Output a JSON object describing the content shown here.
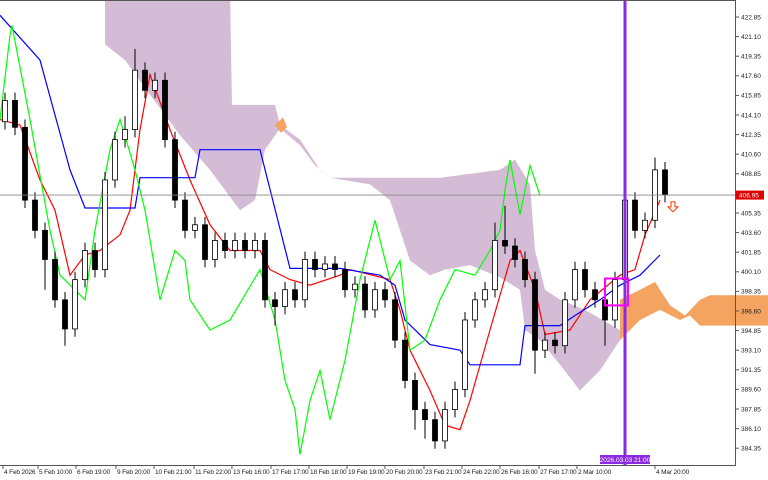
{
  "chart_data": {
    "type": "candlestick",
    "y_axis": {
      "range": [
        383.4,
        424.4
      ],
      "ticks": [
        "422.85",
        "421.10",
        "419.35",
        "417.60",
        "415.85",
        "414.10",
        "412.35",
        "410.60",
        "408.85",
        "405.35",
        "403.60",
        "401.85",
        "400.10",
        "398.35",
        "396.60",
        "394.85",
        "393.10",
        "391.35",
        "389.60",
        "387.85",
        "386.10",
        "384.35"
      ],
      "position": "right"
    },
    "current_price": {
      "label": "406.95",
      "value": 406.95,
      "color": "#e00000"
    },
    "x_axis": {
      "labels": [
        "4 Feb 2026",
        "5 Feb 10:00",
        "6 Feb 19:00",
        "9 Feb 20:00",
        "10 Feb 21:00",
        "11 Feb 22:00",
        "13 Feb 16:00",
        "17 Feb 17:00",
        "18 Feb 18:00",
        "19 Feb 19:00",
        "20 Feb 20:00",
        "23 Feb 21:00",
        "24 Feb 22:00",
        "26 Feb 16:00",
        "27 Feb 17:00",
        "2 Mar 10:00",
        "4 Mar 20:00"
      ],
      "crosshair_label": "2026.03.03 21:00"
    },
    "candles_ohlc": [
      [
        413.5,
        416.1,
        412.8,
        415.4
      ],
      [
        415.4,
        416.1,
        412.3,
        413.0
      ],
      [
        413.0,
        413.7,
        405.8,
        406.5
      ],
      [
        406.5,
        407.2,
        403.1,
        403.8
      ],
      [
        403.8,
        404.5,
        398.5,
        401.2
      ],
      [
        401.2,
        401.9,
        396.9,
        397.6
      ],
      [
        397.6,
        398.3,
        393.5,
        395.0
      ],
      [
        395.0,
        400.1,
        394.3,
        399.4
      ],
      [
        399.4,
        402.7,
        398.7,
        402.0
      ],
      [
        402.0,
        402.7,
        399.6,
        400.3
      ],
      [
        400.3,
        409.0,
        399.6,
        408.3
      ],
      [
        408.3,
        412.6,
        407.6,
        411.9
      ],
      [
        411.9,
        414.0,
        411.2,
        412.8
      ],
      [
        412.8,
        420.0,
        412.1,
        418.1
      ],
      [
        418.1,
        418.8,
        415.6,
        416.3
      ],
      [
        416.3,
        417.9,
        415.6,
        417.2
      ],
      [
        417.2,
        417.9,
        411.2,
        411.9
      ],
      [
        411.9,
        412.6,
        405.8,
        406.5
      ],
      [
        406.5,
        407.2,
        403.1,
        403.8
      ],
      [
        403.8,
        405.0,
        403.1,
        404.3
      ],
      [
        404.3,
        405.0,
        400.5,
        401.2
      ],
      [
        401.2,
        403.6,
        400.5,
        402.9
      ],
      [
        402.9,
        403.6,
        401.3,
        402.0
      ],
      [
        402.0,
        403.6,
        401.3,
        402.9
      ],
      [
        402.9,
        403.6,
        401.3,
        402.0
      ],
      [
        402.0,
        403.6,
        401.3,
        402.9
      ],
      [
        402.9,
        403.6,
        396.9,
        397.6
      ],
      [
        397.6,
        398.3,
        395.3,
        397.0
      ],
      [
        397.0,
        399.2,
        396.3,
        398.5
      ],
      [
        398.5,
        399.2,
        396.9,
        397.6
      ],
      [
        397.6,
        401.9,
        396.9,
        401.2
      ],
      [
        401.2,
        401.9,
        399.6,
        400.3
      ],
      [
        400.3,
        401.5,
        399.6,
        400.8
      ],
      [
        400.8,
        401.5,
        399.6,
        400.3
      ],
      [
        400.3,
        401.0,
        397.8,
        398.5
      ],
      [
        398.5,
        399.7,
        397.8,
        399.0
      ],
      [
        399.0,
        399.7,
        396.0,
        396.7
      ],
      [
        396.7,
        399.2,
        396.0,
        398.5
      ],
      [
        398.5,
        399.2,
        396.9,
        397.6
      ],
      [
        397.6,
        398.3,
        393.3,
        394.0
      ],
      [
        394.0,
        394.7,
        389.7,
        390.4
      ],
      [
        390.4,
        391.1,
        386.0,
        387.8
      ],
      [
        387.8,
        388.5,
        385.2,
        386.9
      ],
      [
        386.9,
        387.6,
        384.3,
        385.0
      ],
      [
        385.0,
        388.5,
        384.3,
        387.8
      ],
      [
        387.8,
        390.3,
        387.1,
        389.6
      ],
      [
        389.6,
        396.5,
        388.9,
        395.8
      ],
      [
        395.8,
        398.3,
        395.1,
        397.6
      ],
      [
        397.6,
        399.2,
        396.9,
        398.5
      ],
      [
        398.5,
        404.5,
        397.8,
        402.9
      ],
      [
        402.9,
        406.0,
        401.7,
        402.4
      ],
      [
        402.4,
        403.1,
        400.5,
        401.2
      ],
      [
        401.2,
        401.9,
        398.7,
        399.4
      ],
      [
        399.4,
        400.1,
        391.0,
        393.1
      ],
      [
        393.1,
        394.7,
        392.4,
        394.0
      ],
      [
        394.0,
        394.7,
        392.8,
        393.5
      ],
      [
        393.5,
        398.3,
        392.8,
        397.6
      ],
      [
        397.6,
        401.0,
        396.9,
        400.3
      ],
      [
        400.3,
        401.0,
        397.8,
        398.5
      ],
      [
        398.5,
        399.2,
        396.9,
        397.6
      ],
      [
        397.6,
        398.3,
        393.5,
        395.8
      ],
      [
        395.8,
        400.1,
        395.1,
        399.4
      ],
      [
        399.4,
        407.2,
        398.7,
        406.5
      ],
      [
        406.5,
        407.2,
        403.1,
        403.8
      ],
      [
        403.8,
        405.4,
        403.1,
        404.7
      ],
      [
        404.7,
        410.3,
        404.0,
        409.2
      ],
      [
        409.2,
        409.9,
        406.3,
        407.0
      ]
    ],
    "lines": {
      "tenkan": {
        "color": "#ff0000",
        "points": [
          [
            -0.5,
            413.7
          ],
          [
            1.5,
            413.2
          ],
          [
            3.5,
            408.3
          ],
          [
            5,
            405.6
          ],
          [
            6.5,
            399.8
          ],
          [
            8,
            401.6
          ],
          [
            9.5,
            402.0
          ],
          [
            11.5,
            403.4
          ],
          [
            12.5,
            405.6
          ],
          [
            13.5,
            412.8
          ],
          [
            14.5,
            417.7
          ],
          [
            16.5,
            412.8
          ],
          [
            18.5,
            408.3
          ],
          [
            20.5,
            404.3
          ],
          [
            22.5,
            402.0
          ],
          [
            25.5,
            402.0
          ],
          [
            26.5,
            400.3
          ],
          [
            28.5,
            399.4
          ],
          [
            30.5,
            398.9
          ],
          [
            33.5,
            399.8
          ],
          [
            34.5,
            400.3
          ],
          [
            38.5,
            399.4
          ],
          [
            39.5,
            396.7
          ],
          [
            40.5,
            393.1
          ],
          [
            42.5,
            389.5
          ],
          [
            44,
            386.4
          ],
          [
            45.5,
            386.0
          ],
          [
            46.5,
            388.6
          ],
          [
            48.5,
            394.9
          ],
          [
            50.5,
            401.1
          ],
          [
            51.5,
            402.0
          ],
          [
            53,
            398.5
          ],
          [
            54,
            394.5
          ],
          [
            56.5,
            394.9
          ],
          [
            58.5,
            397.6
          ],
          [
            61.5,
            399.8
          ],
          [
            63,
            400.3
          ],
          [
            64,
            403.4
          ],
          [
            65.5,
            406.5
          ]
        ]
      },
      "kijun": {
        "color": "#0000ff",
        "points": [
          [
            -0.5,
            423.0
          ],
          [
            3.5,
            419.0
          ],
          [
            6.5,
            409.2
          ],
          [
            8,
            405.8
          ],
          [
            13,
            405.8
          ],
          [
            13.5,
            408.5
          ],
          [
            19,
            408.5
          ],
          [
            19.5,
            411.0
          ],
          [
            25.5,
            411.0
          ],
          [
            28.5,
            400.4
          ],
          [
            33.5,
            400.4
          ],
          [
            37.5,
            399.8
          ],
          [
            39,
            398.9
          ],
          [
            40,
            395.8
          ],
          [
            42.5,
            393.6
          ],
          [
            45.5,
            393.1
          ],
          [
            46.5,
            391.8
          ],
          [
            51.5,
            391.8
          ],
          [
            52,
            395.3
          ],
          [
            55.5,
            395.3
          ],
          [
            57,
            396.2
          ],
          [
            59.5,
            397.6
          ],
          [
            61.5,
            398.9
          ],
          [
            63.5,
            399.8
          ],
          [
            65.5,
            401.6
          ]
        ]
      },
      "chikou": {
        "color": "#00ff00",
        "points": [
          [
            -0.5,
            413.7
          ],
          [
            0.5,
            421.2
          ],
          [
            0.7,
            422.1
          ],
          [
            2.5,
            413.7
          ],
          [
            3.5,
            408.7
          ],
          [
            4.5,
            403.8
          ],
          [
            5.5,
            399.8
          ],
          [
            8,
            397.6
          ],
          [
            9,
            403.8
          ],
          [
            10.5,
            411.0
          ],
          [
            11.5,
            413.7
          ],
          [
            13,
            409.2
          ],
          [
            14,
            405.6
          ],
          [
            15,
            400.3
          ],
          [
            15.5,
            397.6
          ],
          [
            17,
            402.0
          ],
          [
            18,
            401.1
          ],
          [
            18.5,
            397.6
          ],
          [
            20.5,
            394.9
          ],
          [
            22.5,
            395.8
          ],
          [
            25.5,
            400.3
          ],
          [
            27,
            395.8
          ],
          [
            28,
            390.4
          ],
          [
            29,
            387.8
          ],
          [
            29.5,
            383.8
          ],
          [
            30.5,
            388.6
          ],
          [
            31.5,
            391.3
          ],
          [
            32.5,
            386.9
          ],
          [
            34,
            392.2
          ],
          [
            35.5,
            399.4
          ],
          [
            37,
            404.7
          ],
          [
            38.5,
            399.4
          ],
          [
            39.5,
            401.1
          ],
          [
            40.5,
            393.1
          ],
          [
            42,
            394.0
          ],
          [
            43.5,
            397.6
          ],
          [
            45,
            400.3
          ],
          [
            47,
            399.8
          ],
          [
            48.5,
            402.0
          ],
          [
            49.5,
            403.8
          ],
          [
            50,
            407.4
          ],
          [
            50.5,
            410.1
          ],
          [
            51.5,
            405.2
          ],
          [
            52.5,
            409.6
          ],
          [
            53.5,
            406.9
          ]
        ]
      }
    },
    "cloud": {
      "bearish_color": "#d5bcd6",
      "bullish_color": "#f4a460",
      "bearish": [
        [
          10,
          425.2
        ],
        [
          22.5,
          425.2
        ],
        [
          22.7,
          415.0
        ],
        [
          27,
          415.0
        ],
        [
          27.5,
          413.2
        ],
        [
          29.5,
          411.9
        ],
        [
          31.5,
          409.2
        ],
        [
          32.5,
          408.5
        ],
        [
          43.5,
          408.5
        ],
        [
          49.5,
          409.2
        ],
        [
          51,
          410.1
        ],
        [
          52.5,
          407.9
        ],
        [
          53,
          402.0
        ],
        [
          54,
          398.5
        ],
        [
          55.5,
          397.6
        ],
        [
          58,
          396.7
        ],
        [
          61.5,
          394.9
        ],
        [
          61.5,
          394.0
        ],
        [
          59.5,
          391.3
        ],
        [
          57.5,
          389.5
        ],
        [
          55.5,
          391.8
        ],
        [
          53.5,
          394.0
        ],
        [
          52,
          394.9
        ],
        [
          51.5,
          398.5
        ],
        [
          49.5,
          399.6
        ],
        [
          46.5,
          400.7
        ],
        [
          44,
          400.3
        ],
        [
          42.5,
          399.8
        ],
        [
          40.5,
          401.1
        ],
        [
          38.5,
          406.5
        ],
        [
          36.5,
          407.9
        ],
        [
          32.5,
          408.5
        ],
        [
          31,
          409.6
        ],
        [
          29.5,
          411.4
        ],
        [
          27.5,
          412.9
        ],
        [
          26,
          411.0
        ],
        [
          25,
          406.5
        ],
        [
          23.5,
          405.6
        ],
        [
          20.5,
          409.2
        ],
        [
          17.5,
          412.3
        ],
        [
          14.5,
          415.9
        ],
        [
          12,
          419.0
        ],
        [
          10,
          420.4
        ]
      ],
      "bullish": [
        [
          [
            61.5,
            397.6
          ],
          [
            63.5,
            398.5
          ],
          [
            65,
            399.2
          ],
          [
            65.5,
            398.5
          ],
          [
            66.5,
            397.1
          ],
          [
            68,
            396.2
          ],
          [
            69.5,
            397.6
          ],
          [
            70.5,
            398.0
          ],
          [
            76.5,
            398.0
          ],
          [
            76.5,
            395.3
          ],
          [
            69.5,
            395.3
          ],
          [
            68.5,
            396.2
          ],
          [
            67.5,
            395.8
          ],
          [
            65.5,
            396.7
          ],
          [
            63.5,
            395.8
          ],
          [
            61.5,
            394.0
          ]
        ],
        [
          [
            27,
            413.2
          ],
          [
            27.8,
            413.9
          ],
          [
            28.2,
            413.0
          ],
          [
            27.6,
            412.5
          ]
        ]
      ]
    },
    "vertical_line": {
      "index": 62,
      "color": "#8a2be2"
    },
    "selection_box": {
      "index_range": [
        60,
        62.3
      ],
      "price_range": [
        397.1,
        399.5
      ],
      "color": "#ff00ff"
    },
    "signal_arrow": {
      "index": 66.8,
      "price": 405.9,
      "direction": "down",
      "color": "#ff3300"
    },
    "grid": false
  }
}
